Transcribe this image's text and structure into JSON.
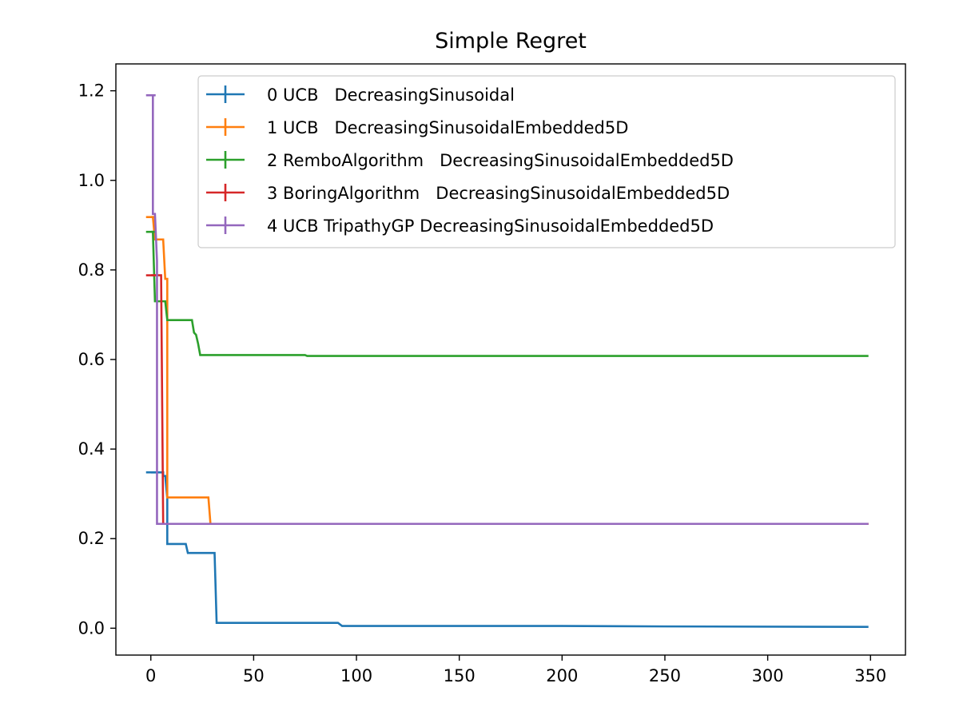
{
  "chart_data": {
    "type": "line",
    "title": "Simple Regret",
    "xlabel": "",
    "ylabel": "",
    "xlim": [
      -17,
      367
    ],
    "ylim": [
      -0.06,
      1.26
    ],
    "x_ticks": [
      0,
      50,
      100,
      150,
      200,
      250,
      300,
      350
    ],
    "y_ticks": [
      0.0,
      0.2,
      0.4,
      0.6,
      0.8,
      1.0,
      1.2
    ],
    "x_tick_labels": [
      "0",
      "50",
      "100",
      "150",
      "200",
      "250",
      "300",
      "350"
    ],
    "y_tick_labels": [
      "0.0",
      "0.2",
      "0.4",
      "0.6",
      "0.8",
      "1.0",
      "1.2"
    ],
    "grid": false,
    "legend_position": "top-right",
    "series": [
      {
        "name": "0 UCB   DecreasingSinusoidal",
        "color": "#1f77b4",
        "points": [
          [
            0,
            0.348
          ],
          [
            6,
            0.348
          ],
          [
            6,
            0.34
          ],
          [
            7,
            0.34
          ],
          [
            8,
            0.29
          ],
          [
            8,
            0.188
          ],
          [
            17,
            0.188
          ],
          [
            18,
            0.168
          ],
          [
            31,
            0.168
          ],
          [
            32,
            0.012
          ],
          [
            91,
            0.012
          ],
          [
            93,
            0.005
          ],
          [
            200,
            0.005
          ],
          [
            250,
            0.004
          ],
          [
            349,
            0.003
          ]
        ]
      },
      {
        "name": "1 UCB   DecreasingSinusoidalEmbedded5D",
        "color": "#ff7f0e",
        "points": [
          [
            0,
            0.918
          ],
          [
            1,
            0.918
          ],
          [
            2,
            0.868
          ],
          [
            6,
            0.868
          ],
          [
            7,
            0.78
          ],
          [
            8,
            0.78
          ],
          [
            8,
            0.292
          ],
          [
            28,
            0.292
          ],
          [
            29,
            0.233
          ],
          [
            349,
            0.233
          ]
        ]
      },
      {
        "name": "2 RemboAlgorithm   DecreasingSinusoidalEmbedded5D",
        "color": "#2ca02c",
        "points": [
          [
            0,
            0.885
          ],
          [
            1,
            0.885
          ],
          [
            2,
            0.73
          ],
          [
            7,
            0.73
          ],
          [
            8,
            0.688
          ],
          [
            20,
            0.688
          ],
          [
            21,
            0.66
          ],
          [
            22,
            0.655
          ],
          [
            23,
            0.635
          ],
          [
            24,
            0.61
          ],
          [
            75,
            0.61
          ],
          [
            76,
            0.608
          ],
          [
            349,
            0.608
          ]
        ]
      },
      {
        "name": "3 BoringAlgorithm   DecreasingSinusoidalEmbedded5D",
        "color": "#d62728",
        "points": [
          [
            0,
            0.788
          ],
          [
            5,
            0.788
          ],
          [
            6,
            0.233
          ],
          [
            349,
            0.233
          ]
        ]
      },
      {
        "name": "4 UCB TripathyGP DecreasingSinusoidalEmbedded5D",
        "color": "#9467bd",
        "points": [
          [
            0,
            1.19
          ],
          [
            1,
            1.19
          ],
          [
            1,
            0.925
          ],
          [
            2,
            0.925
          ],
          [
            3,
            0.82
          ],
          [
            3,
            0.233
          ],
          [
            349,
            0.233
          ]
        ]
      }
    ]
  }
}
